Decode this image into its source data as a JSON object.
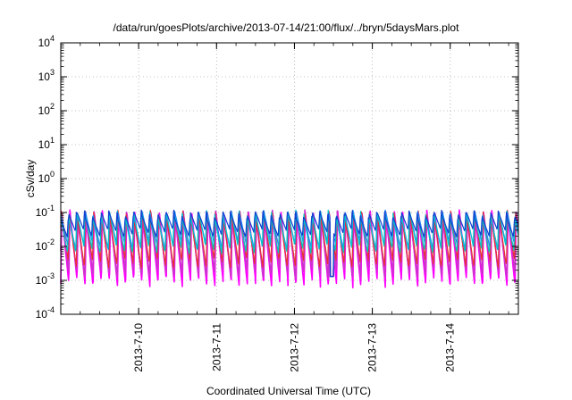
{
  "chart_data": {
    "type": "line",
    "title": "/data/run/goesPlots/archive/2013-07-14/21:00/flux/../bryn/5daysMars.plot",
    "xlabel": "Coordinated Universal Time (UTC)",
    "ylabel": "cSv/day",
    "xlim": [
      "2013-07-09T00:00",
      "2013-07-14T21:00"
    ],
    "ylim": [
      0.0001,
      10000
    ],
    "yscale": "log",
    "grid": true,
    "legend": "none",
    "x_ticks": [
      {
        "label": "2013-7-10",
        "t": "2013-07-10T00:00"
      },
      {
        "label": "2013-7-11",
        "t": "2013-07-11T00:00"
      },
      {
        "label": "2013-7-12",
        "t": "2013-07-12T00:00"
      },
      {
        "label": "2013-7-13",
        "t": "2013-07-13T00:00"
      },
      {
        "label": "2013-7-14",
        "t": "2013-07-14T00:00"
      }
    ],
    "y_ticks": [
      {
        "base": "10",
        "exp": "-4",
        "value": 0.0001
      },
      {
        "base": "10",
        "exp": "-3",
        "value": 0.001
      },
      {
        "base": "10",
        "exp": "-2",
        "value": 0.01
      },
      {
        "base": "10",
        "exp": "-1",
        "value": 0.1
      },
      {
        "base": "10",
        "exp": "0",
        "value": 1
      },
      {
        "base": "10",
        "exp": "1",
        "value": 10
      },
      {
        "base": "10",
        "exp": "2",
        "value": 100
      },
      {
        "base": "10",
        "exp": "3",
        "value": 1000
      },
      {
        "base": "10",
        "exp": "4",
        "value": 10000
      }
    ],
    "series_colors": [
      "#ff00ff",
      "#cc33cc",
      "#e83030",
      "#2080ff",
      "#00c8c8",
      "#1040d0"
    ],
    "pattern": {
      "description": "Sawtooth dose-rate curves repeating roughly every 2.5 hours; peaks near 0.1 cSv/day, troughs between 0.0007 and 0.03 cSv/day depending on series",
      "cycle_hours": 2.5,
      "peak_value": 0.09,
      "trough_values_by_series": [
        0.0008,
        0.0015,
        0.003,
        0.01,
        0.008,
        0.025
      ],
      "data_gap": {
        "start": "2013-07-12T11:00",
        "end": "2013-07-12T12:00",
        "value": 0.0013
      }
    }
  }
}
